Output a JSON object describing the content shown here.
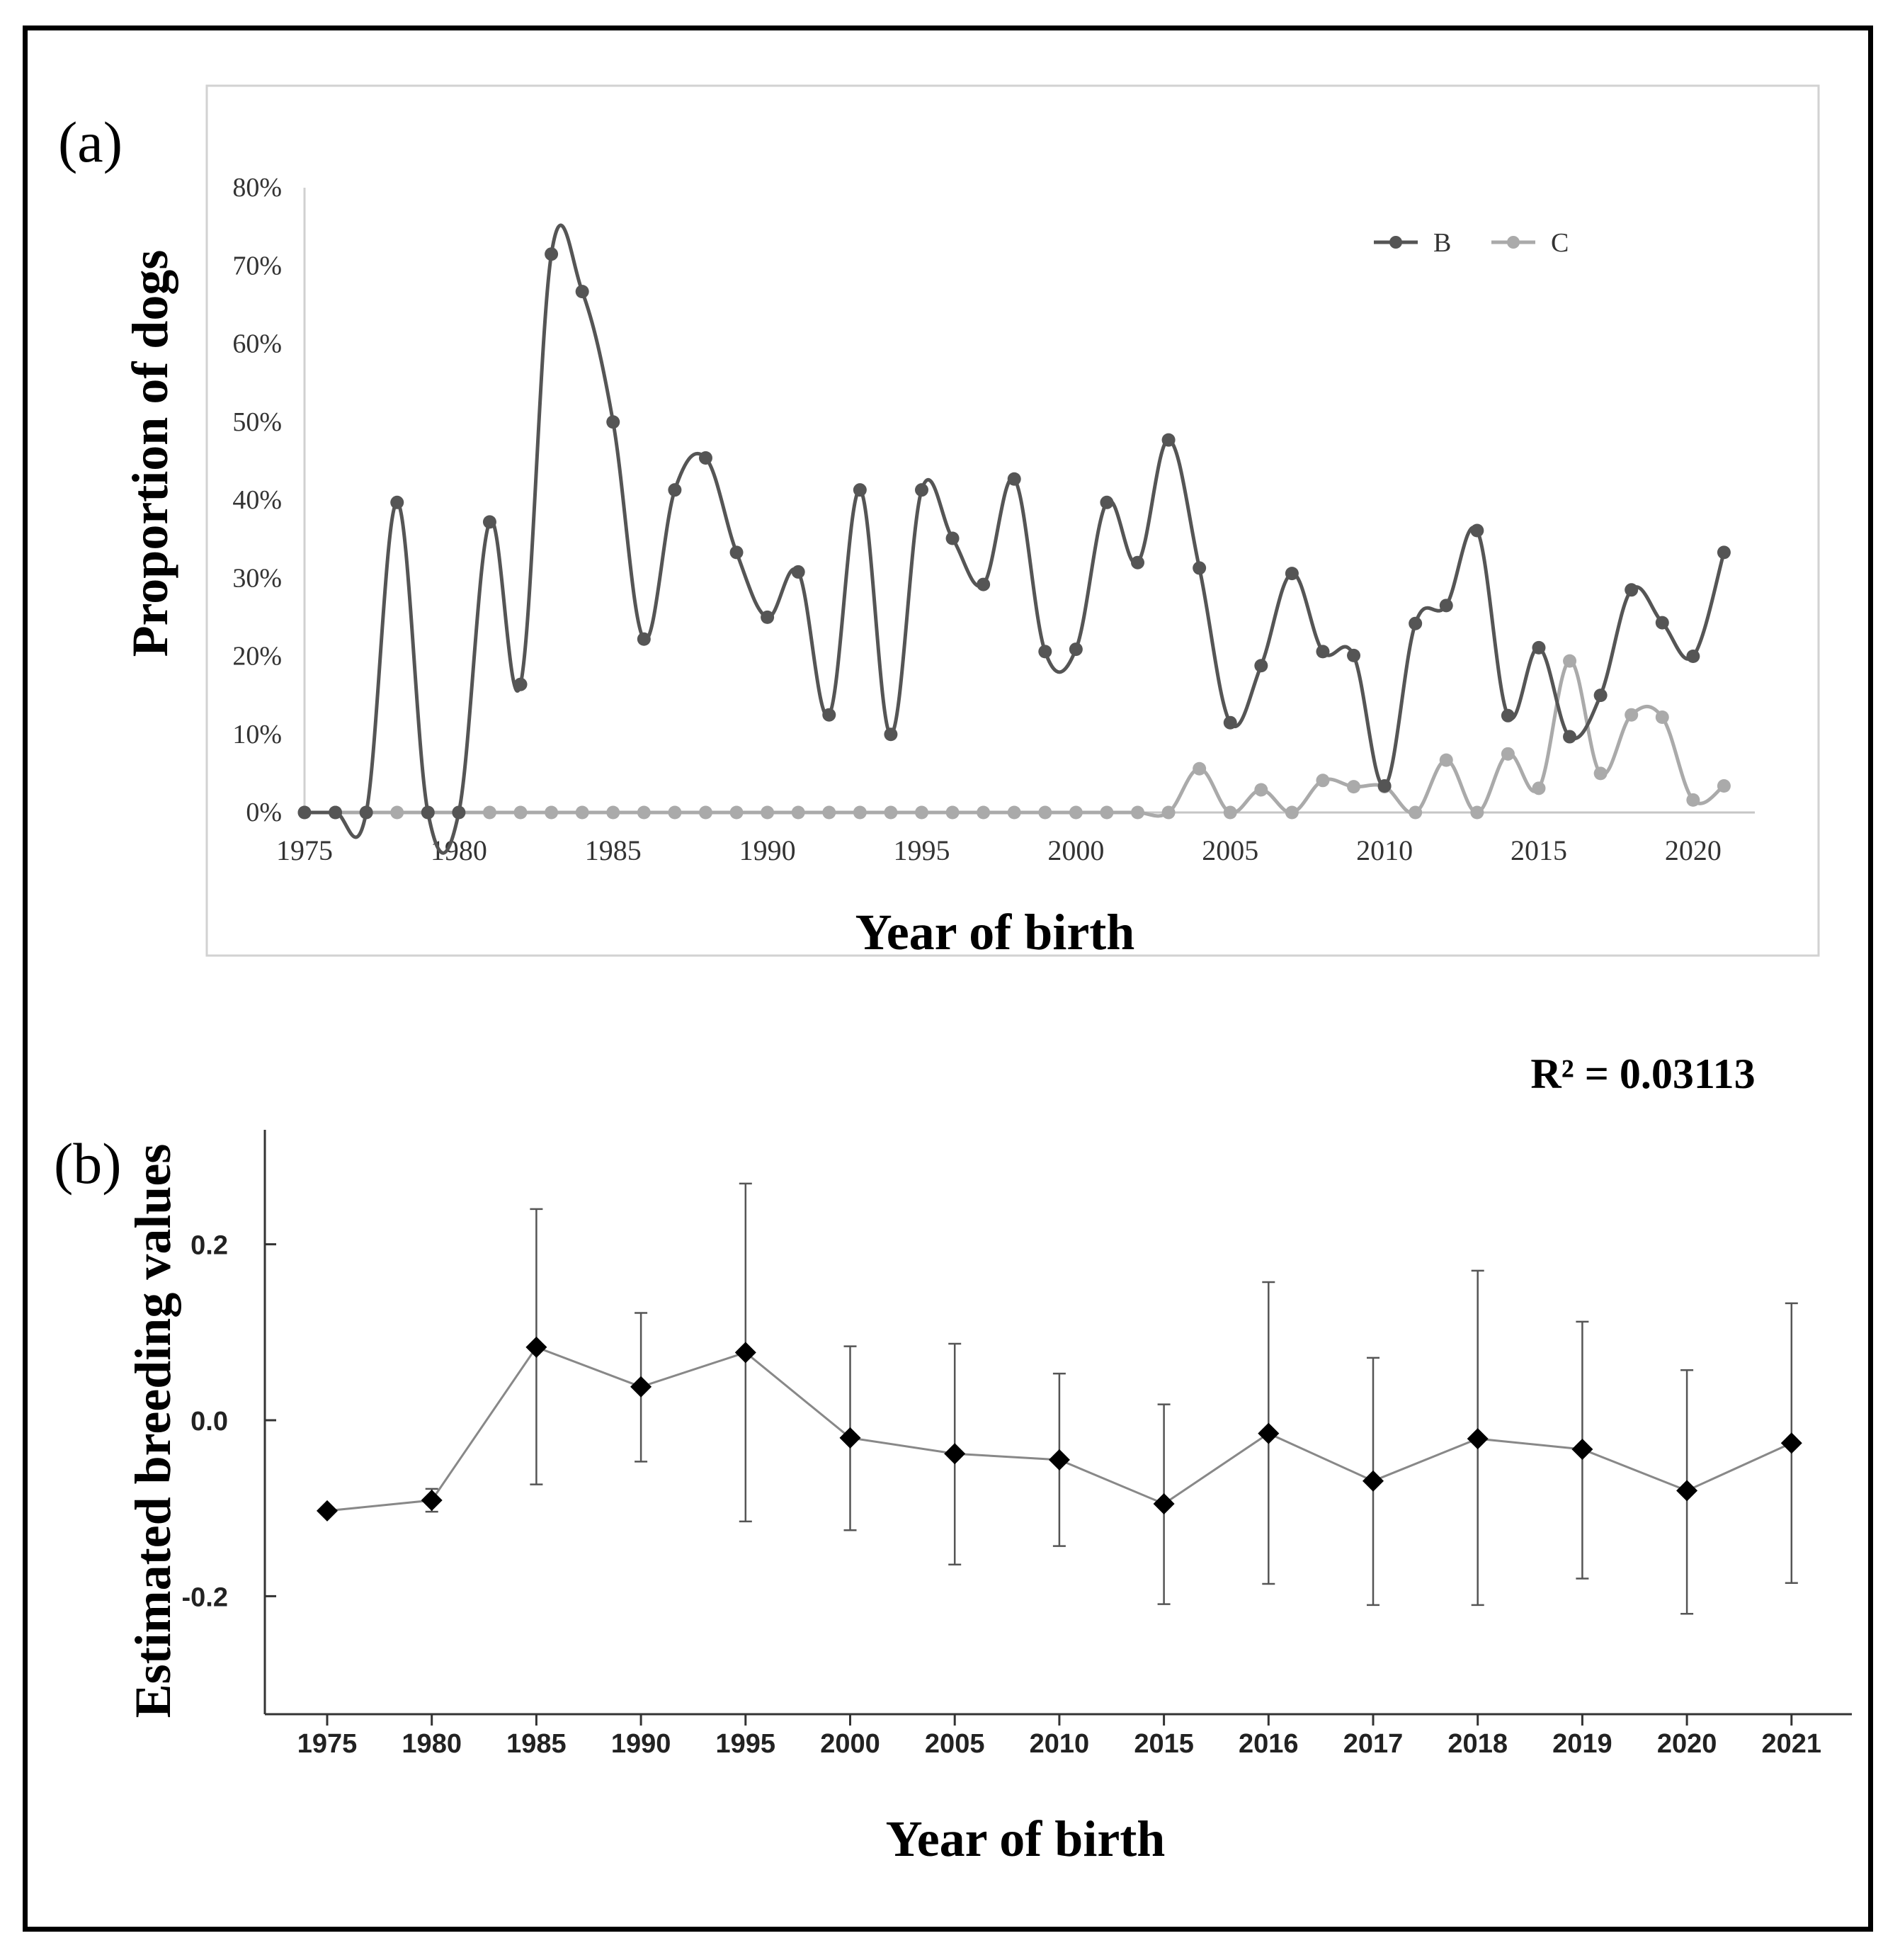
{
  "chart_data": [
    {
      "type": "line",
      "panel_label": "(a)",
      "title": "",
      "xlabel": "Year of birth",
      "ylabel": "Proportion of dogs",
      "xlim": [
        1975,
        2022
      ],
      "ylim": [
        0,
        80
      ],
      "x_ticks": [
        "1975",
        "1980",
        "1985",
        "1990",
        "1995",
        "2000",
        "2005",
        "2010",
        "2015",
        "2020"
      ],
      "y_ticks": [
        "0%",
        "10%",
        "20%",
        "30%",
        "40%",
        "50%",
        "60%",
        "70%",
        "80%"
      ],
      "legend": "top-right",
      "x": [
        1975,
        1976,
        1977,
        1978,
        1979,
        1980,
        1981,
        1982,
        1983,
        1984,
        1985,
        1986,
        1987,
        1988,
        1989,
        1990,
        1991,
        1992,
        1993,
        1994,
        1995,
        1996,
        1997,
        1998,
        1999,
        2000,
        2001,
        2002,
        2003,
        2004,
        2005,
        2006,
        2007,
        2008,
        2009,
        2010,
        2011,
        2012,
        2013,
        2014,
        2015,
        2016,
        2017,
        2018,
        2019,
        2020,
        2021
      ],
      "series": [
        {
          "name": "B",
          "color": "#555555",
          "values": [
            0,
            0,
            0,
            39.7,
            0,
            0,
            37.2,
            16.4,
            71.5,
            66.7,
            50,
            22.2,
            41.3,
            45.4,
            33.3,
            25,
            30.8,
            12.5,
            41.3,
            10,
            41.3,
            35.1,
            29.2,
            42.7,
            20.6,
            20.9,
            39.7,
            32,
            47.7,
            31.3,
            11.5,
            18.8,
            30.6,
            20.6,
            20.1,
            3.4,
            24.2,
            26.5,
            36.1,
            12.4,
            21.1,
            9.7,
            15,
            28.5,
            24.3,
            20,
            33.3
          ]
        },
        {
          "name": "C",
          "color": "#aaaaaa",
          "values": [
            0,
            0,
            0,
            0,
            0,
            0,
            0,
            0,
            0,
            0,
            0,
            0,
            0,
            0,
            0,
            0,
            0,
            0,
            0,
            0,
            0,
            0,
            0,
            0,
            0,
            0,
            0,
            0,
            0,
            5.6,
            0,
            2.9,
            0,
            4.1,
            3.3,
            3.3,
            0,
            6.7,
            0,
            7.5,
            3.1,
            19.4,
            5,
            12.5,
            12.2,
            1.6,
            3.4
          ]
        }
      ]
    },
    {
      "type": "line",
      "panel_label": "(b)",
      "title": "",
      "annotation": "R² = 0.03113",
      "xlabel": "Year of birth",
      "ylabel": "Estimated breeding values",
      "ylim": [
        -0.33,
        0.33
      ],
      "y_ticks": [
        "0.2",
        "0.0",
        "-0.2"
      ],
      "y_tick_values": [
        0.2,
        0.0,
        -0.2
      ],
      "categories": [
        "1975",
        "1980",
        "1985",
        "1990",
        "1995",
        "2000",
        "2005",
        "2010",
        "2015",
        "2016",
        "2017",
        "2018",
        "2019",
        "2020",
        "2021"
      ],
      "series": [
        {
          "name": "EBV",
          "color": "#000000",
          "values": [
            -0.103,
            -0.091,
            0.083,
            0.038,
            0.077,
            -0.02,
            -0.038,
            -0.045,
            -0.095,
            -0.015,
            -0.069,
            -0.021,
            -0.033,
            -0.08,
            -0.026
          ],
          "error_low": [
            -0.103,
            -0.104,
            -0.073,
            -0.047,
            -0.115,
            -0.125,
            -0.164,
            -0.143,
            -0.209,
            -0.186,
            -0.21,
            -0.21,
            -0.18,
            -0.22,
            -0.185
          ],
          "error_high": [
            -0.103,
            -0.078,
            0.24,
            0.122,
            0.269,
            0.084,
            0.087,
            0.053,
            0.018,
            0.157,
            0.071,
            0.17,
            0.112,
            0.057,
            0.133
          ]
        }
      ]
    }
  ]
}
